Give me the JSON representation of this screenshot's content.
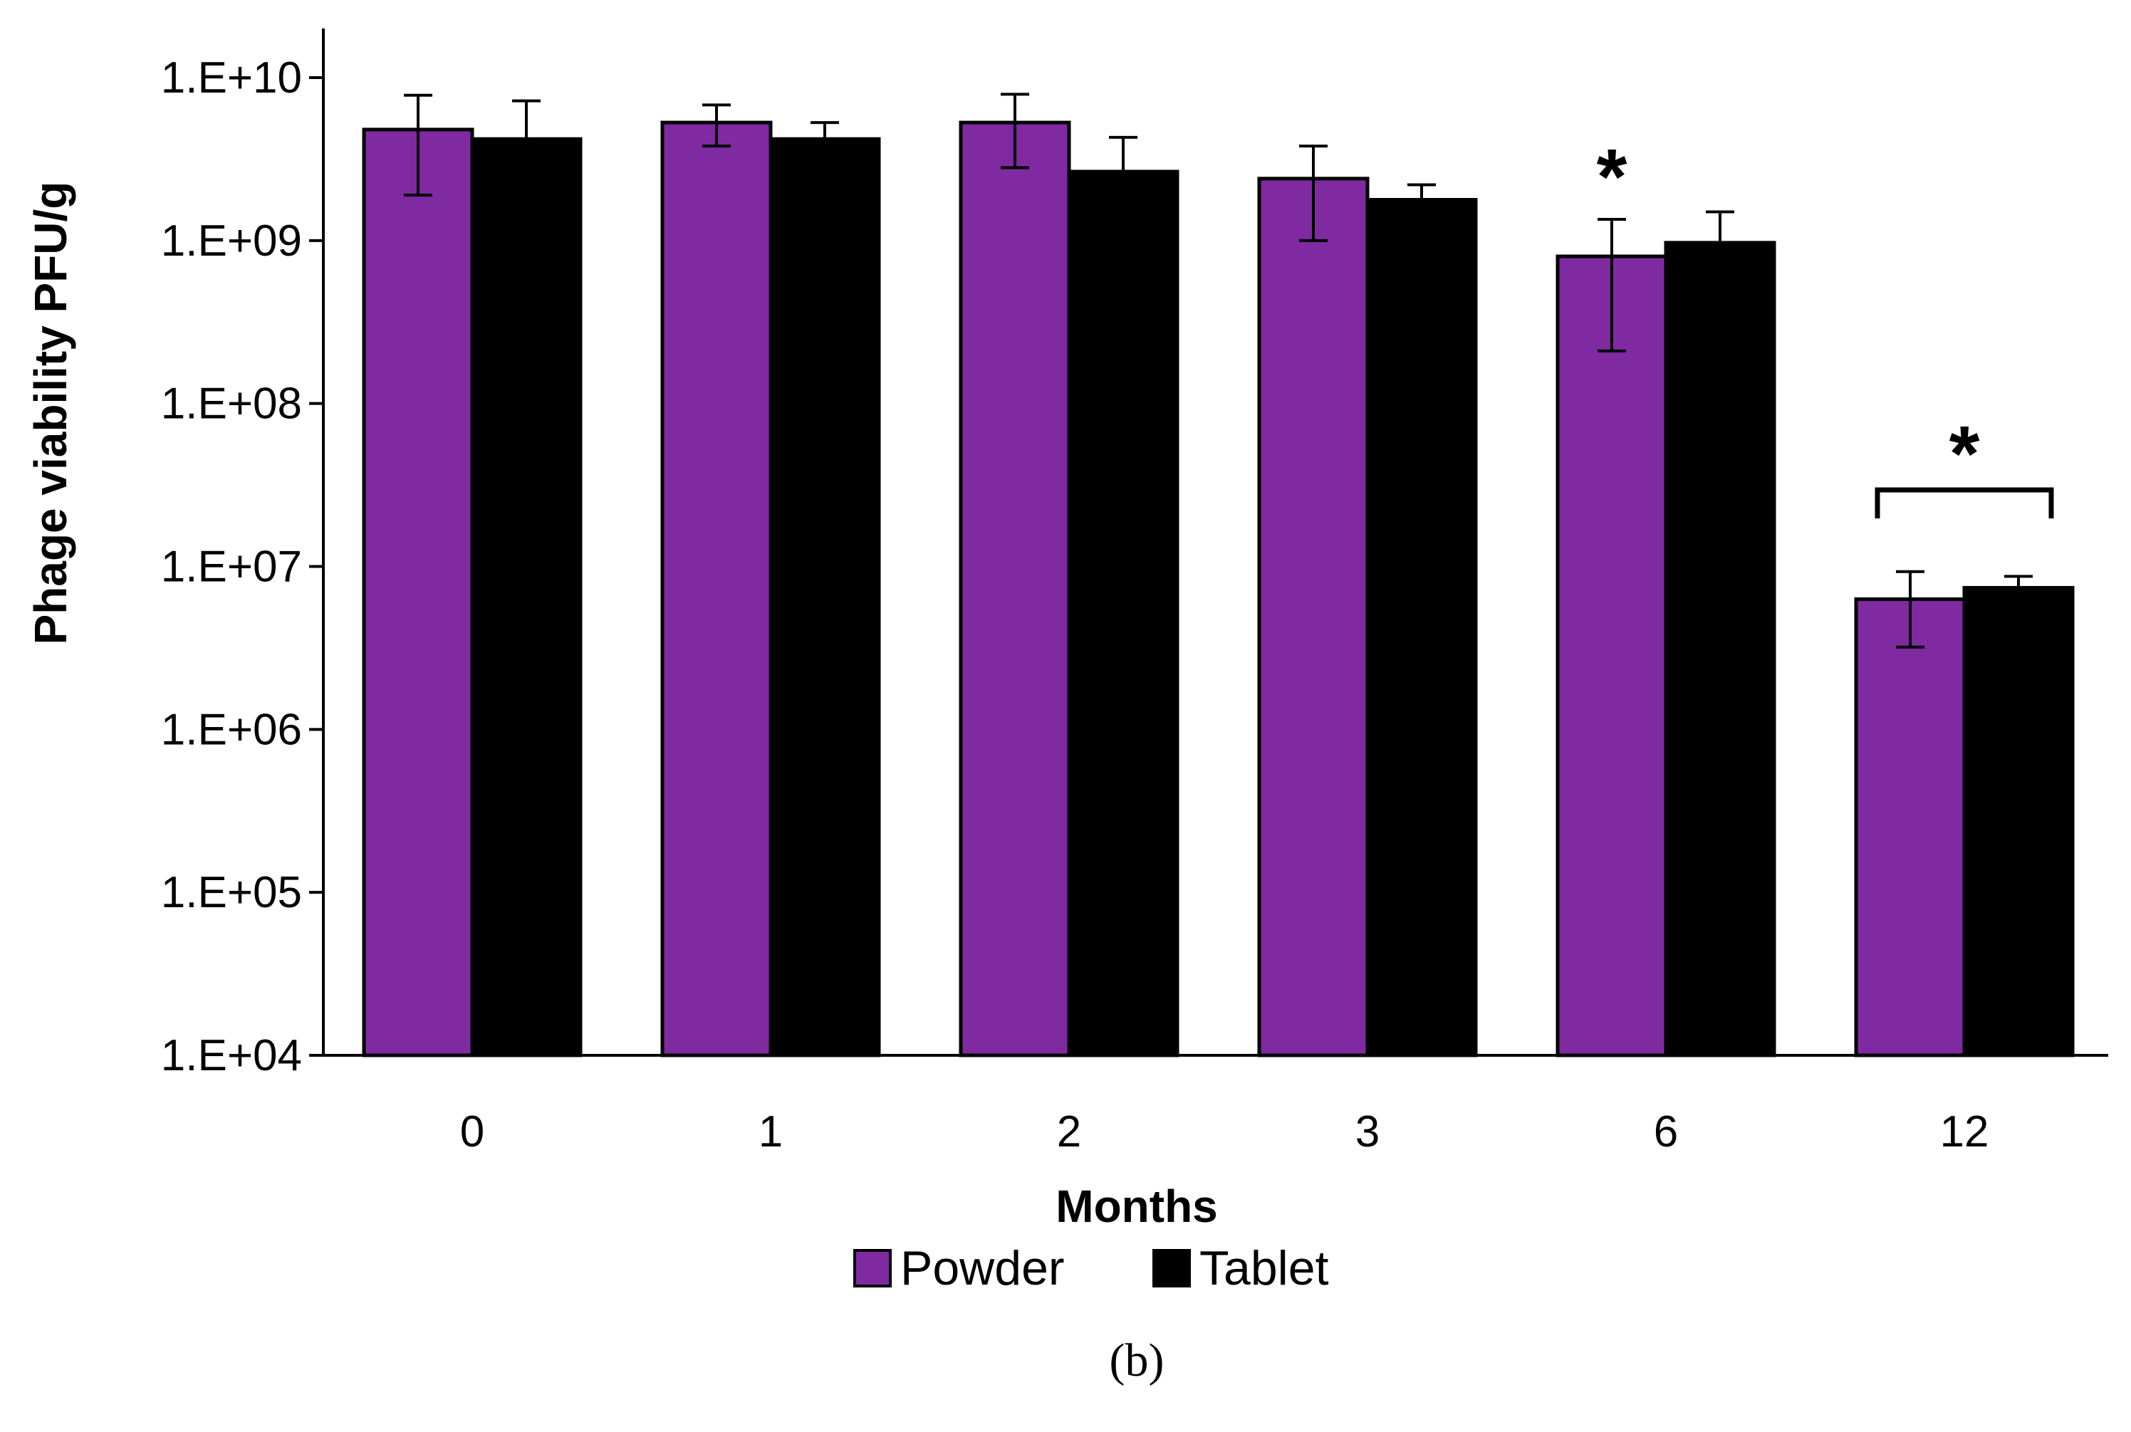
{
  "chart_data": {
    "type": "bar",
    "title": "",
    "xlabel": "Months",
    "ylabel": "Phage viability PFU/g",
    "yscale": "log",
    "ylim": [
      10000,
      10000000000
    ],
    "ytick_values": [
      10000,
      100000,
      1000000,
      10000000,
      100000000,
      1000000000,
      10000000000
    ],
    "yticks": [
      "1.E+04",
      "1.E+05",
      "1.E+06",
      "1.E+07",
      "1.E+08",
      "1.E+09",
      "1.E+10"
    ],
    "categories": [
      "0",
      "1",
      "2",
      "3",
      "6",
      "12"
    ],
    "series": [
      {
        "name": "Powder",
        "color": "#7f2aa0",
        "values": [
          4800000000,
          5300000000,
          5300000000,
          2400000000,
          800000000,
          6300000
        ],
        "err_low": [
          1900000000,
          3800000000,
          2800000000,
          1000000000,
          210000000,
          3200000
        ],
        "err_high": [
          7800000000,
          6800000000,
          7900000000,
          3800000000,
          1350000000,
          9300000
        ]
      },
      {
        "name": "Tablet",
        "color": "#000000",
        "values": [
          4200000000,
          4200000000,
          2650000000,
          1780000000,
          970000000,
          7400000
        ],
        "err_low": [
          4200000000,
          4200000000,
          2650000000,
          1780000000,
          970000000,
          7400000
        ],
        "err_high": [
          7200000000,
          5300000000,
          4300000000,
          2200000000,
          1500000000,
          8700000
        ]
      }
    ],
    "significance": [
      {
        "category": "6",
        "marker": "*",
        "bracket": false
      },
      {
        "category": "12",
        "marker": "*",
        "bracket": true
      }
    ],
    "legend": {
      "position": "bottom"
    },
    "grid": false
  },
  "panel_label": "(b)"
}
